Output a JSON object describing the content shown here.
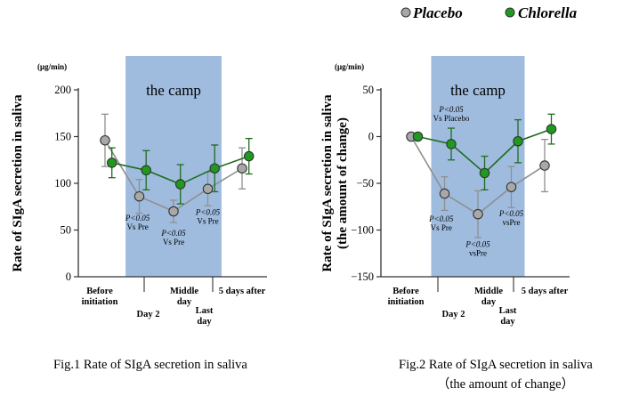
{
  "legend": {
    "placebo": {
      "label": "Placebo",
      "color": "#a8a8a8"
    },
    "chlorella": {
      "label": "Chlorella",
      "color": "#1e9a1e"
    }
  },
  "colors": {
    "camp_band": "#9fbcdf",
    "placebo_line": "#8f8f8f",
    "chlorella_line": "#1e6b1e"
  },
  "chart_data": [
    {
      "type": "line",
      "title": "",
      "caption": "Fig.1 Rate of SIgA secretion in saliva",
      "ylabel": "Rate of SIgA secretion in saliva",
      "unit": "(μg/min)",
      "ylim": [
        0,
        200
      ],
      "yticks": [
        0,
        50,
        100,
        150,
        200
      ],
      "ytick_labels": [
        "0",
        "50",
        "100",
        "150",
        "200"
      ],
      "categories": [
        "Before initiation",
        "Day 2",
        "Middle day",
        "Last day",
        "5 days after"
      ],
      "category_labels": [
        [
          "Before",
          "initiation"
        ],
        [
          "Day 2"
        ],
        [
          "Middle",
          "day"
        ],
        [
          "Last",
          "day"
        ],
        [
          "5 days after"
        ]
      ],
      "band_label": "the camp",
      "band_range": [
        0.6,
        3.4
      ],
      "series": [
        {
          "name": "Placebo",
          "x": [
            0,
            1,
            2,
            3,
            4
          ],
          "values": [
            146,
            86,
            70,
            94,
            116
          ],
          "err": [
            28,
            18,
            12,
            18,
            22
          ]
        },
        {
          "name": "Chlorella",
          "x": [
            0.2,
            1.2,
            2.2,
            3.2,
            4.2
          ],
          "values": [
            122,
            114,
            99,
            116,
            129
          ],
          "err": [
            16,
            21,
            21,
            25,
            19
          ]
        }
      ],
      "annotations": [
        {
          "text": [
            "P<0.05",
            "Vs Pre"
          ],
          "x": 0.95,
          "y": 60
        },
        {
          "text": [
            "P<0.05",
            "Vs Pre"
          ],
          "x": 2.0,
          "y": 44
        },
        {
          "text": [
            "P<0.05",
            "Vs Pre"
          ],
          "x": 3.0,
          "y": 66
        }
      ]
    },
    {
      "type": "line",
      "title": "",
      "caption": "Fig.2 Rate of SIgA secretion in saliva",
      "caption2": "（the amount of change）",
      "ylabel": "Rate of SIgA secretion in saliva",
      "ylabel2": "(the amount of change)",
      "unit": "(μg/min)",
      "ylim": [
        -150,
        50
      ],
      "yticks": [
        -150,
        -100,
        -50,
        0,
        50
      ],
      "ytick_labels": [
        "−150",
        "−100",
        "−50",
        "0",
        "50"
      ],
      "categories": [
        "Before initiation",
        "Day 2",
        "Middle day",
        "Last day",
        "5 days after"
      ],
      "category_labels": [
        [
          "Before",
          "initiation"
        ],
        [
          "Day 2"
        ],
        [
          "Middle",
          "day"
        ],
        [
          "Last",
          "day"
        ],
        [
          "5 days after"
        ]
      ],
      "band_label": "the camp",
      "band_range": [
        0.6,
        3.4
      ],
      "series": [
        {
          "name": "Placebo",
          "x": [
            0,
            1,
            2,
            3,
            4
          ],
          "values": [
            0,
            -61,
            -83,
            -54,
            -31
          ],
          "err": [
            0,
            18,
            25,
            22,
            28
          ]
        },
        {
          "name": "Chlorella",
          "x": [
            0.2,
            1.2,
            2.2,
            3.2,
            4.2
          ],
          "values": [
            0,
            -8,
            -39,
            -5,
            8
          ],
          "err": [
            0,
            17,
            18,
            23,
            16
          ]
        }
      ],
      "annotations": [
        {
          "text": [
            "P<0.05",
            "Vs Placebo"
          ],
          "x": 1.2,
          "y": 26
        },
        {
          "text": [
            "P<0.05",
            "Vs Pre"
          ],
          "x": 0.9,
          "y": -91
        },
        {
          "text": [
            "P<0.05",
            "vsPre"
          ],
          "x": 2.0,
          "y": -118
        },
        {
          "text": [
            "P<0.05",
            "vsPre"
          ],
          "x": 3.0,
          "y": -85
        }
      ]
    }
  ]
}
